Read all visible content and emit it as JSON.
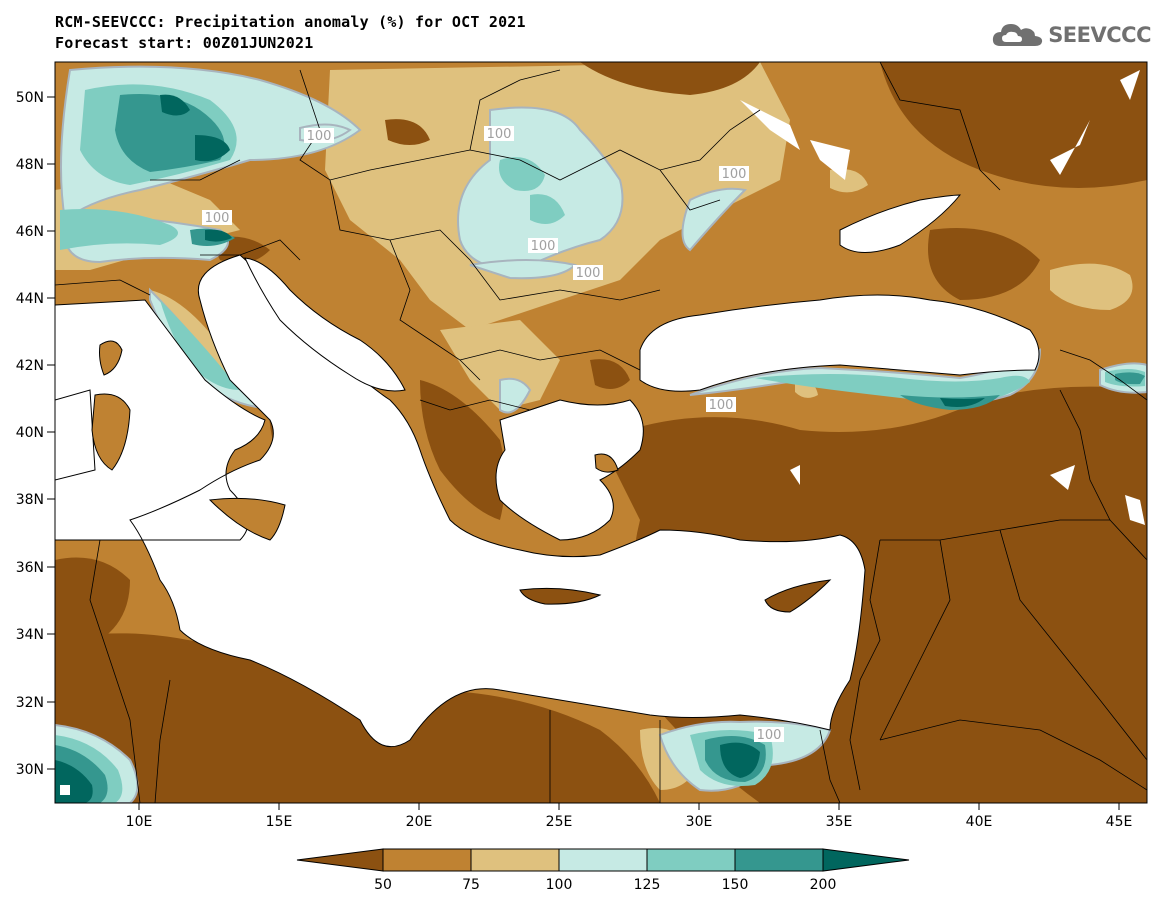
{
  "header": {
    "title_line1": "RCM-SEEVCCC: Precipitation anomaly (%) for OCT 2021",
    "title_line2": "Forecast start: 00Z01JUN2021"
  },
  "logo": {
    "text": "SEEVCCC",
    "icon": "cloud-icon"
  },
  "map": {
    "lat_labels": [
      "50N",
      "48N",
      "46N",
      "44N",
      "42N",
      "40N",
      "38N",
      "36N",
      "34N",
      "32N",
      "30N"
    ],
    "lon_labels": [
      "10E",
      "15E",
      "20E",
      "25E",
      "30E",
      "35E",
      "40E",
      "45E"
    ],
    "contour_labels": [
      "100",
      "100",
      "100",
      "100",
      "100",
      "100",
      "100",
      "100"
    ]
  },
  "legend": {
    "ticks": [
      "50",
      "75",
      "100",
      "125",
      "150",
      "200"
    ],
    "colors": [
      "#8c5111",
      "#bf8232",
      "#dfc17e",
      "#c6eae4",
      "#7fcdc1",
      "#35978f",
      "#01665e"
    ]
  },
  "colors": {
    "very_dry": "#8c5111",
    "dry": "#bf8232",
    "slightly_dry": "#dfc17e",
    "slightly_wet": "#c6eae4",
    "wet": "#7fcdc1",
    "very_wet": "#35978f",
    "extreme_wet": "#01665e",
    "contour_line": "#a8b4be",
    "sea": "#ffffff"
  }
}
